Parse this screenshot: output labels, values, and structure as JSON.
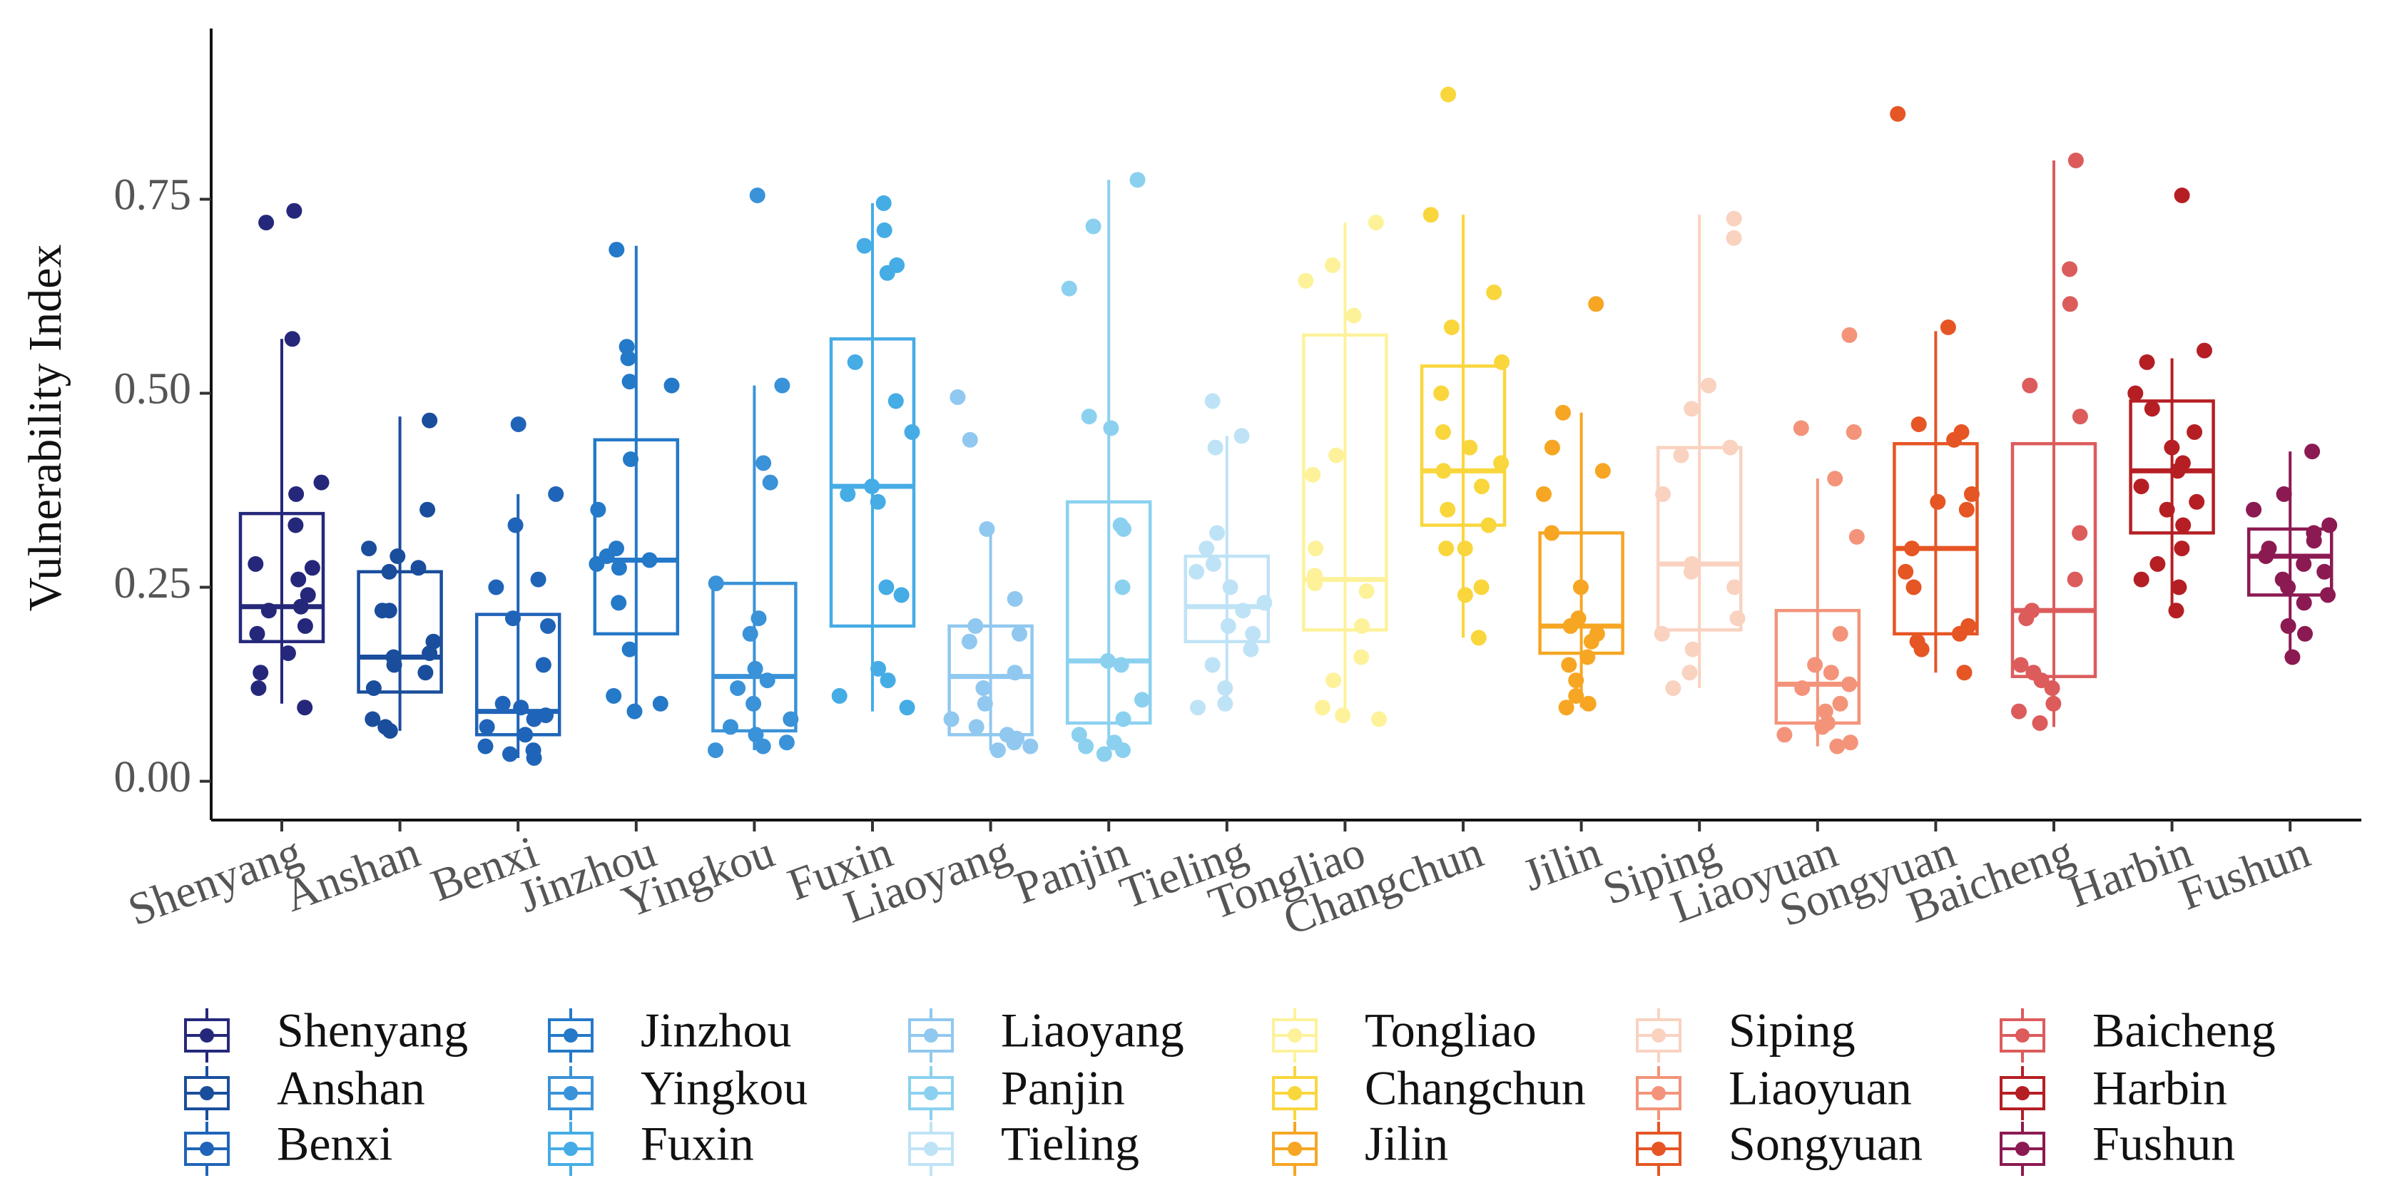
{
  "chart_data": {
    "type": "boxplot",
    "title": "",
    "xlabel": "",
    "ylabel": "Vulnerability Index",
    "ylim": [
      -0.05,
      0.97
    ],
    "yticks": [
      0.0,
      0.25,
      0.5,
      0.75
    ],
    "ytick_labels": [
      "0.00",
      "0.25",
      "0.50",
      "0.75"
    ],
    "legend_position": "bottom",
    "categories": [
      "Shenyang",
      "Anshan",
      "Benxi",
      "Jinzhou",
      "Yingkou",
      "Fuxin",
      "Liaoyang",
      "Panjin",
      "Tieling",
      "Tongliao",
      "Changchun",
      "Jilin",
      "Siping",
      "Liaoyuan",
      "Songyuan",
      "Baicheng",
      "Harbin",
      "Fushun"
    ],
    "colors": [
      "#25287a",
      "#1a4e9c",
      "#1f64b8",
      "#2479c8",
      "#3a92d8",
      "#45ace5",
      "#90c8ef",
      "#8bd1ef",
      "#bfe3f6",
      "#fdf29a",
      "#f9d63c",
      "#f6a623",
      "#f9d2c0",
      "#f3947a",
      "#e65524",
      "#dc5c5c",
      "#b51f24",
      "#8c1a52"
    ],
    "series": [
      {
        "name": "Shenyang",
        "q1": 0.18,
        "median": 0.225,
        "q3": 0.345,
        "whisker_low": 0.1,
        "whisker_high": 0.57,
        "points": [
          0.735,
          0.72,
          0.57,
          0.385,
          0.37,
          0.33,
          0.28,
          0.275,
          0.26,
          0.24,
          0.225,
          0.22,
          0.2,
          0.19,
          0.165,
          0.14,
          0.12,
          0.095
        ]
      },
      {
        "name": "Anshan",
        "q1": 0.115,
        "median": 0.16,
        "q3": 0.27,
        "whisker_low": 0.065,
        "whisker_high": 0.47,
        "points": [
          0.465,
          0.35,
          0.3,
          0.29,
          0.275,
          0.27,
          0.22,
          0.22,
          0.18,
          0.165,
          0.16,
          0.15,
          0.14,
          0.12,
          0.08,
          0.07,
          0.065
        ]
      },
      {
        "name": "Benxi",
        "q1": 0.06,
        "median": 0.09,
        "q3": 0.215,
        "whisker_low": 0.03,
        "whisker_high": 0.37,
        "points": [
          0.46,
          0.37,
          0.33,
          0.26,
          0.25,
          0.21,
          0.2,
          0.15,
          0.1,
          0.095,
          0.085,
          0.08,
          0.07,
          0.06,
          0.045,
          0.04,
          0.035,
          0.03
        ]
      },
      {
        "name": "Jinzhou",
        "q1": 0.19,
        "median": 0.285,
        "q3": 0.44,
        "whisker_low": 0.09,
        "whisker_high": 0.69,
        "points": [
          0.685,
          0.56,
          0.545,
          0.515,
          0.51,
          0.415,
          0.35,
          0.3,
          0.29,
          0.285,
          0.28,
          0.275,
          0.23,
          0.17,
          0.11,
          0.1,
          0.09
        ]
      },
      {
        "name": "Yingkou",
        "q1": 0.065,
        "median": 0.135,
        "q3": 0.255,
        "whisker_low": 0.04,
        "whisker_high": 0.51,
        "points": [
          0.755,
          0.51,
          0.41,
          0.385,
          0.255,
          0.21,
          0.19,
          0.145,
          0.13,
          0.12,
          0.1,
          0.08,
          0.07,
          0.06,
          0.05,
          0.045,
          0.04
        ]
      },
      {
        "name": "Fuxin",
        "q1": 0.2,
        "median": 0.38,
        "q3": 0.57,
        "whisker_low": 0.09,
        "whisker_high": 0.745,
        "points": [
          0.745,
          0.71,
          0.69,
          0.665,
          0.655,
          0.54,
          0.49,
          0.45,
          0.38,
          0.37,
          0.36,
          0.25,
          0.24,
          0.145,
          0.13,
          0.11,
          0.095
        ]
      },
      {
        "name": "Liaoyang",
        "q1": 0.06,
        "median": 0.135,
        "q3": 0.2,
        "whisker_low": 0.04,
        "whisker_high": 0.325,
        "points": [
          0.495,
          0.44,
          0.325,
          0.235,
          0.2,
          0.19,
          0.18,
          0.14,
          0.12,
          0.1,
          0.08,
          0.07,
          0.06,
          0.055,
          0.05,
          0.045,
          0.04
        ]
      },
      {
        "name": "Panjin",
        "q1": 0.075,
        "median": 0.155,
        "q3": 0.36,
        "whisker_low": 0.035,
        "whisker_high": 0.775,
        "points": [
          0.775,
          0.715,
          0.635,
          0.47,
          0.455,
          0.33,
          0.325,
          0.25,
          0.155,
          0.15,
          0.105,
          0.08,
          0.06,
          0.05,
          0.045,
          0.04,
          0.035
        ]
      },
      {
        "name": "Tieling",
        "q1": 0.18,
        "median": 0.225,
        "q3": 0.29,
        "whisker_low": 0.095,
        "whisker_high": 0.445,
        "points": [
          0.49,
          0.445,
          0.43,
          0.32,
          0.3,
          0.28,
          0.27,
          0.25,
          0.23,
          0.22,
          0.2,
          0.19,
          0.17,
          0.15,
          0.12,
          0.1,
          0.095
        ]
      },
      {
        "name": "Tongliao",
        "q1": 0.195,
        "median": 0.26,
        "q3": 0.575,
        "whisker_low": 0.075,
        "whisker_high": 0.72,
        "points": [
          0.72,
          0.665,
          0.645,
          0.6,
          0.42,
          0.395,
          0.3,
          0.265,
          0.255,
          0.245,
          0.2,
          0.16,
          0.13,
          0.095,
          0.085,
          0.08
        ]
      },
      {
        "name": "Changchun",
        "q1": 0.33,
        "median": 0.4,
        "q3": 0.535,
        "whisker_low": 0.185,
        "whisker_high": 0.73,
        "points": [
          0.885,
          0.73,
          0.63,
          0.585,
          0.54,
          0.5,
          0.45,
          0.43,
          0.41,
          0.4,
          0.38,
          0.35,
          0.33,
          0.3,
          0.3,
          0.25,
          0.24,
          0.185
        ]
      },
      {
        "name": "Jilin",
        "q1": 0.165,
        "median": 0.2,
        "q3": 0.32,
        "whisker_low": 0.095,
        "whisker_high": 0.475,
        "points": [
          0.615,
          0.475,
          0.43,
          0.4,
          0.37,
          0.32,
          0.25,
          0.21,
          0.2,
          0.19,
          0.18,
          0.16,
          0.15,
          0.13,
          0.11,
          0.1,
          0.095
        ]
      },
      {
        "name": "Siping",
        "q1": 0.195,
        "median": 0.28,
        "q3": 0.43,
        "whisker_low": 0.12,
        "whisker_high": 0.73,
        "points": [
          0.725,
          0.7,
          0.51,
          0.48,
          0.43,
          0.42,
          0.37,
          0.28,
          0.27,
          0.25,
          0.21,
          0.19,
          0.17,
          0.14,
          0.12
        ]
      },
      {
        "name": "Liaoyuan",
        "q1": 0.075,
        "median": 0.125,
        "q3": 0.22,
        "whisker_low": 0.045,
        "whisker_high": 0.39,
        "points": [
          0.575,
          0.455,
          0.45,
          0.39,
          0.315,
          0.19,
          0.15,
          0.14,
          0.125,
          0.12,
          0.1,
          0.09,
          0.075,
          0.07,
          0.06,
          0.05,
          0.045
        ]
      },
      {
        "name": "Songyuan",
        "q1": 0.19,
        "median": 0.3,
        "q3": 0.435,
        "whisker_low": 0.14,
        "whisker_high": 0.58,
        "points": [
          0.86,
          0.585,
          0.46,
          0.45,
          0.44,
          0.37,
          0.36,
          0.35,
          0.3,
          0.27,
          0.25,
          0.2,
          0.19,
          0.18,
          0.17,
          0.14
        ]
      },
      {
        "name": "Baicheng",
        "q1": 0.135,
        "median": 0.22,
        "q3": 0.435,
        "whisker_low": 0.07,
        "whisker_high": 0.8,
        "points": [
          0.8,
          0.66,
          0.615,
          0.51,
          0.47,
          0.32,
          0.26,
          0.22,
          0.21,
          0.15,
          0.14,
          0.13,
          0.12,
          0.1,
          0.09,
          0.075
        ]
      },
      {
        "name": "Harbin",
        "q1": 0.32,
        "median": 0.4,
        "q3": 0.49,
        "whisker_low": 0.22,
        "whisker_high": 0.545,
        "points": [
          0.755,
          0.555,
          0.54,
          0.5,
          0.48,
          0.45,
          0.43,
          0.41,
          0.4,
          0.38,
          0.36,
          0.35,
          0.33,
          0.3,
          0.28,
          0.26,
          0.25,
          0.22
        ]
      },
      {
        "name": "Fushun",
        "q1": 0.24,
        "median": 0.29,
        "q3": 0.325,
        "whisker_low": 0.165,
        "whisker_high": 0.425,
        "points": [
          0.425,
          0.37,
          0.35,
          0.33,
          0.32,
          0.31,
          0.3,
          0.29,
          0.28,
          0.27,
          0.26,
          0.25,
          0.24,
          0.23,
          0.2,
          0.19,
          0.16
        ]
      }
    ]
  }
}
